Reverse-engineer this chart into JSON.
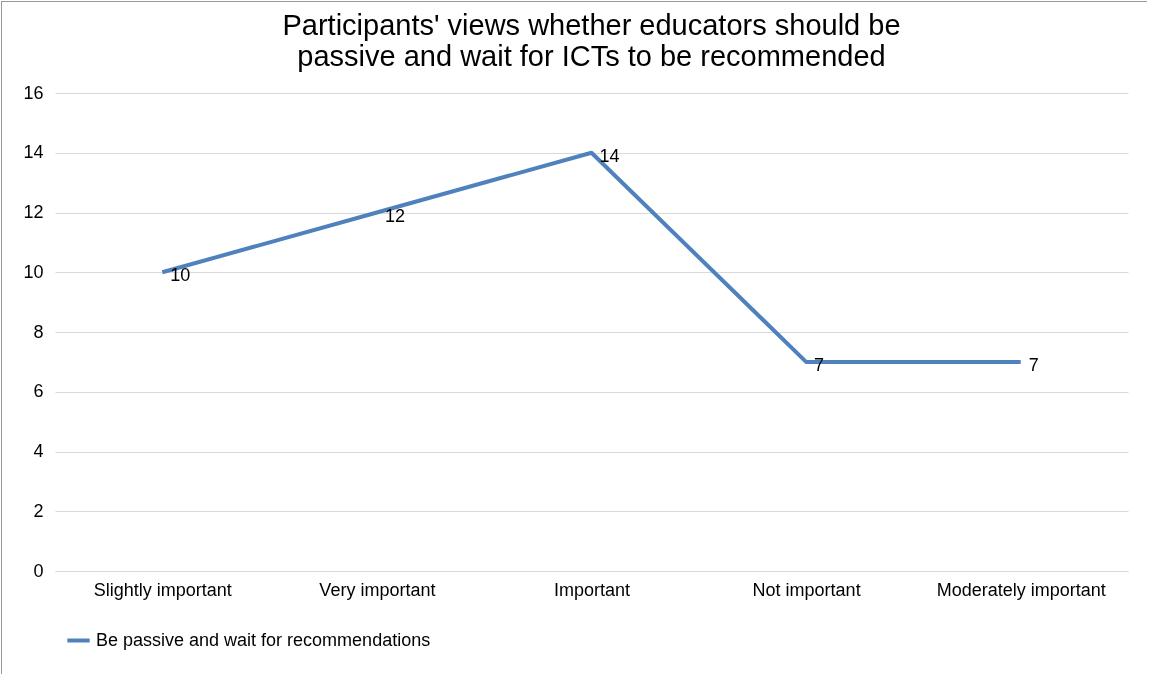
{
  "chart_data": {
    "type": "line",
    "title": "Participants' views whether educators should be passive and wait for ICTs to be recommended",
    "categories": [
      "Slightly important",
      "Very important",
      "Important",
      "Not important",
      "Moderately important"
    ],
    "series": [
      {
        "name": "Be passive and wait for recommendations",
        "color": "#4f81bd",
        "values": [
          10,
          12,
          14,
          7,
          7
        ]
      }
    ],
    "ylim": [
      0,
      16
    ],
    "yticks": [
      0,
      2,
      4,
      6,
      8,
      10,
      12,
      14,
      16
    ],
    "grid": "y",
    "legend": "bottom",
    "data_labels": true,
    "marker": "none",
    "line_style": "solid"
  }
}
